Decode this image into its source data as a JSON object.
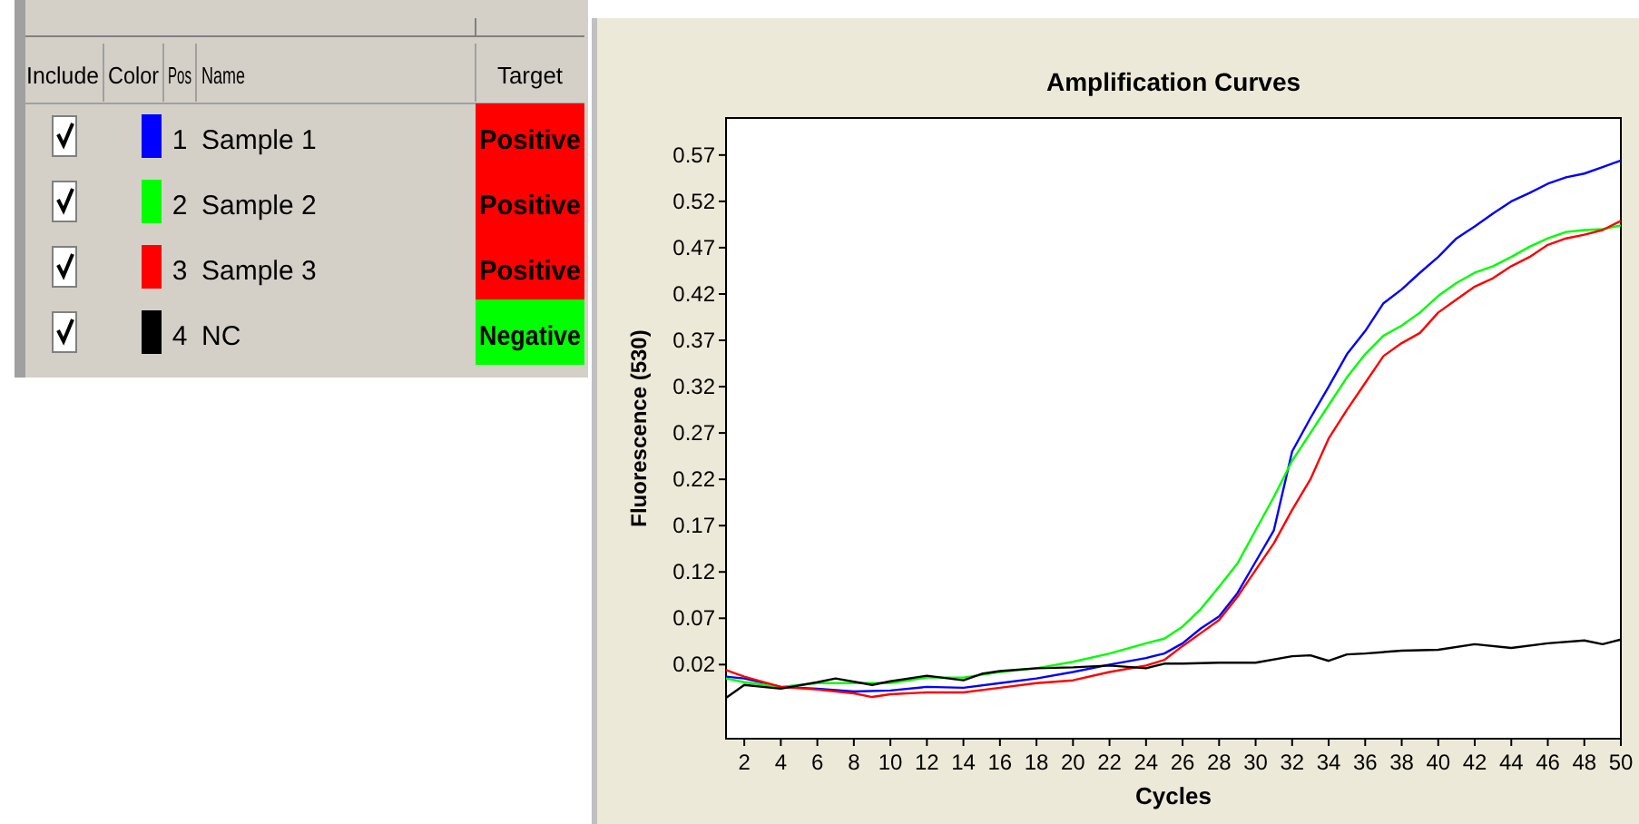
{
  "chart_data": {
    "type": "line",
    "title": "Amplification Curves",
    "xlabel": "Cycles",
    "ylabel": "Fluorescence (530)",
    "xlim": [
      1,
      50
    ],
    "xticks": [
      2,
      4,
      6,
      8,
      10,
      12,
      14,
      16,
      18,
      20,
      22,
      24,
      26,
      28,
      30,
      32,
      34,
      36,
      38,
      40,
      42,
      44,
      46,
      48,
      50
    ],
    "ylim": [
      -0.06,
      0.61
    ],
    "yticks": [
      0.02,
      0.07,
      0.12,
      0.17,
      0.22,
      0.27,
      0.32,
      0.37,
      0.42,
      0.47,
      0.52,
      0.57
    ],
    "grid": false,
    "legend": "left",
    "marker": "none",
    "line_style": "solid",
    "annotations": [
      "Include",
      "Color",
      "Pos",
      "Name",
      "Target",
      "1",
      "2",
      "3",
      "4",
      "Positive",
      "Positive",
      "Positive",
      "Negative"
    ],
    "series": [
      {
        "name": "Sample 1",
        "color": "#0000ff",
        "x": [
          1,
          2,
          4,
          6,
          8,
          10,
          12,
          14,
          16,
          18,
          20,
          22,
          24,
          25,
          26,
          27,
          28,
          29,
          30,
          31,
          32,
          33,
          34,
          35,
          36,
          37,
          38,
          39,
          40,
          41,
          42,
          43,
          44,
          45,
          46,
          47,
          48,
          49,
          50
        ],
        "values": [
          0.007,
          0.005,
          -0.004,
          -0.006,
          -0.009,
          -0.008,
          -0.004,
          -0.005,
          0.0,
          0.005,
          0.012,
          0.02,
          0.027,
          0.032,
          0.043,
          0.059,
          0.072,
          0.097,
          0.131,
          0.165,
          0.25,
          0.286,
          0.32,
          0.355,
          0.38,
          0.41,
          0.425,
          0.443,
          0.46,
          0.48,
          0.493,
          0.507,
          0.52,
          0.529,
          0.539,
          0.546,
          0.55,
          0.557,
          0.564
        ]
      },
      {
        "name": "Sample 2",
        "color": "#00ff00",
        "x": [
          1,
          2,
          4,
          6,
          8,
          10,
          12,
          14,
          16,
          18,
          20,
          22,
          24,
          25,
          26,
          27,
          28,
          29,
          30,
          31,
          32,
          33,
          34,
          35,
          36,
          37,
          38,
          39,
          40,
          41,
          42,
          43,
          44,
          45,
          46,
          47,
          48,
          49,
          50
        ],
        "values": [
          0.005,
          0.001,
          -0.004,
          0.0,
          0.0,
          0.0,
          0.006,
          0.006,
          0.012,
          0.016,
          0.023,
          0.032,
          0.043,
          0.048,
          0.061,
          0.08,
          0.104,
          0.129,
          0.165,
          0.201,
          0.24,
          0.27,
          0.3,
          0.33,
          0.355,
          0.375,
          0.386,
          0.4,
          0.418,
          0.432,
          0.443,
          0.45,
          0.46,
          0.471,
          0.48,
          0.487,
          0.489,
          0.49,
          0.494
        ]
      },
      {
        "name": "Sample 3",
        "color": "#ff0000",
        "x": [
          1,
          2,
          4,
          6,
          8,
          9,
          10,
          12,
          14,
          16,
          18,
          20,
          22,
          24,
          25,
          26,
          27,
          28,
          29,
          30,
          31,
          32,
          33,
          34,
          35,
          36,
          37,
          38,
          39,
          40,
          41,
          42,
          43,
          44,
          45,
          46,
          47,
          48,
          49,
          50
        ],
        "values": [
          0.014,
          0.007,
          -0.004,
          -0.007,
          -0.011,
          -0.015,
          -0.012,
          -0.01,
          -0.01,
          -0.005,
          0.0,
          0.003,
          0.012,
          0.019,
          0.025,
          0.04,
          0.054,
          0.068,
          0.093,
          0.122,
          0.151,
          0.187,
          0.22,
          0.264,
          0.295,
          0.324,
          0.353,
          0.367,
          0.378,
          0.4,
          0.414,
          0.428,
          0.437,
          0.45,
          0.46,
          0.473,
          0.48,
          0.484,
          0.489,
          0.499
        ]
      },
      {
        "name": "NC",
        "color": "#000000",
        "x": [
          1,
          2,
          4,
          6,
          7,
          9,
          10,
          12,
          14,
          15,
          16,
          18,
          20,
          22,
          24,
          25,
          26,
          28,
          30,
          32,
          33,
          34,
          35,
          36,
          38,
          40,
          42,
          44,
          46,
          48,
          49,
          50
        ],
        "values": [
          -0.016,
          -0.002,
          -0.006,
          0.001,
          0.005,
          -0.002,
          0.002,
          0.008,
          0.003,
          0.01,
          0.013,
          0.016,
          0.017,
          0.019,
          0.016,
          0.021,
          0.021,
          0.022,
          0.022,
          0.029,
          0.03,
          0.024,
          0.031,
          0.032,
          0.035,
          0.036,
          0.042,
          0.038,
          0.043,
          0.046,
          0.042,
          0.047
        ]
      }
    ]
  }
}
